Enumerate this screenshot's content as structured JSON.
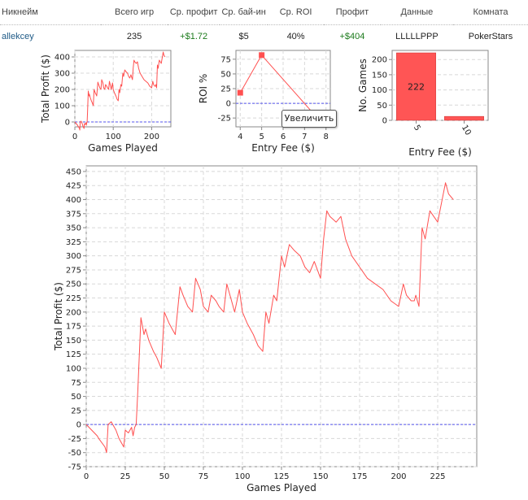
{
  "table": {
    "headers": {
      "nickname": "Никнейм",
      "games": "Всего игр",
      "avg_profit": "Ср. профит",
      "avg_buyin": "Ср. бай-ин",
      "avg_roi": "Ср. ROI",
      "profit": "Профит",
      "data": "Данные",
      "room": "Комната"
    },
    "row": {
      "nickname": "allekcey",
      "games": "235",
      "avg_profit": "+$1.72",
      "avg_buyin": "$5",
      "avg_roi": "40%",
      "profit": "+$404",
      "data": "LLLLLPPP",
      "room": "PokerStars"
    }
  },
  "zoom_tooltip": "Увеличить",
  "chart_data": [
    {
      "type": "line",
      "id": "mini-profit",
      "xlabel": "Games Played",
      "ylabel": "Total Profit ($)",
      "xlim": [
        0,
        250
      ],
      "ylim": [
        -30,
        440
      ],
      "xticks": [
        0,
        100,
        200
      ],
      "yticks": [
        0,
        100,
        200,
        300,
        400
      ],
      "baseline": 0,
      "grid": true,
      "x": [
        0,
        7,
        8,
        12,
        13,
        14,
        16,
        19,
        21,
        24,
        25,
        27,
        29,
        30,
        31,
        32,
        33,
        35,
        37,
        38,
        40,
        43,
        45,
        48,
        50,
        53,
        55,
        57,
        60,
        62,
        65,
        68,
        70,
        73,
        75,
        78,
        80,
        83,
        85,
        88,
        90,
        93,
        95,
        98,
        100,
        103,
        107,
        110,
        113,
        115,
        117,
        120,
        122,
        125,
        127,
        130,
        133,
        137,
        140,
        143,
        146,
        150,
        152,
        154,
        156,
        158,
        160,
        163,
        166,
        170,
        175,
        180,
        185,
        190,
        195,
        200,
        203,
        205,
        208,
        210,
        211,
        212,
        213,
        215,
        217,
        220,
        225,
        230,
        232,
        235
      ],
      "y": [
        0,
        -20,
        -25,
        -40,
        -50,
        0,
        5,
        -10,
        -25,
        -40,
        -10,
        -15,
        -5,
        -20,
        -5,
        0,
        60,
        190,
        160,
        170,
        150,
        130,
        120,
        100,
        200,
        180,
        170,
        160,
        245,
        230,
        210,
        200,
        260,
        240,
        210,
        200,
        230,
        220,
        210,
        200,
        250,
        220,
        200,
        240,
        200,
        180,
        160,
        140,
        130,
        200,
        180,
        230,
        220,
        300,
        280,
        320,
        310,
        300,
        280,
        270,
        290,
        260,
        330,
        380,
        370,
        365,
        360,
        370,
        330,
        300,
        280,
        260,
        250,
        240,
        220,
        210,
        250,
        230,
        220,
        220,
        230,
        220,
        210,
        350,
        330,
        380,
        360,
        430,
        410,
        400
      ]
    },
    {
      "type": "line",
      "id": "roi-by-fee",
      "xlabel": "Entry Fee ($)",
      "ylabel": "ROI %",
      "xlim": [
        3.8,
        8.2
      ],
      "ylim": [
        -40,
        90
      ],
      "xticks": [
        4,
        5,
        6,
        7,
        8
      ],
      "yticks": [
        -25,
        0,
        25,
        50,
        75
      ],
      "baseline": 0,
      "grid": true,
      "x": [
        4,
        5,
        7.6
      ],
      "y": [
        18,
        82,
        -25
      ],
      "markers": [
        true,
        true,
        false
      ]
    },
    {
      "type": "bar",
      "id": "games-by-fee",
      "xlabel": "Entry Fee ($)",
      "ylabel": "No. Games",
      "categories": [
        "5",
        "10"
      ],
      "values": [
        222,
        13
      ],
      "data_labels": [
        "222",
        ""
      ],
      "ylim": [
        0,
        230
      ],
      "yticks": [
        0,
        50,
        100,
        150,
        200
      ],
      "grid": true,
      "bar_color": "#ff5555"
    },
    {
      "type": "line",
      "id": "main-profit",
      "xlabel": "Games Played",
      "ylabel": "Total Profit ($)",
      "xlim": [
        0,
        250
      ],
      "ylim": [
        -75,
        460
      ],
      "xticks": [
        0,
        25,
        50,
        75,
        100,
        125,
        150,
        175,
        200,
        225
      ],
      "yticks": [
        -75,
        -50,
        -25,
        0,
        25,
        50,
        75,
        100,
        125,
        150,
        175,
        200,
        225,
        250,
        275,
        300,
        325,
        350,
        375,
        400,
        425,
        450
      ],
      "baseline": 0,
      "grid": true,
      "x": [
        0,
        7,
        8,
        12,
        13,
        14,
        16,
        19,
        21,
        24,
        25,
        27,
        29,
        30,
        31,
        32,
        33,
        35,
        37,
        38,
        40,
        43,
        45,
        48,
        50,
        53,
        55,
        57,
        60,
        62,
        65,
        68,
        70,
        73,
        75,
        78,
        80,
        83,
        85,
        88,
        90,
        93,
        95,
        98,
        100,
        103,
        107,
        110,
        113,
        115,
        117,
        120,
        122,
        125,
        127,
        130,
        133,
        137,
        140,
        143,
        146,
        150,
        152,
        154,
        156,
        158,
        160,
        163,
        166,
        170,
        175,
        180,
        185,
        190,
        195,
        200,
        203,
        205,
        208,
        210,
        211,
        212,
        213,
        215,
        217,
        220,
        225,
        230,
        232,
        235
      ],
      "y": [
        0,
        -20,
        -25,
        -40,
        -50,
        0,
        5,
        -10,
        -25,
        -40,
        -10,
        -15,
        -5,
        -20,
        -5,
        0,
        60,
        190,
        160,
        170,
        150,
        130,
        120,
        100,
        200,
        180,
        170,
        160,
        245,
        230,
        210,
        200,
        260,
        240,
        210,
        200,
        230,
        220,
        210,
        200,
        250,
        220,
        200,
        240,
        200,
        180,
        160,
        140,
        130,
        200,
        180,
        230,
        220,
        300,
        280,
        320,
        310,
        300,
        280,
        270,
        290,
        260,
        330,
        380,
        370,
        365,
        360,
        370,
        330,
        300,
        280,
        260,
        250,
        240,
        220,
        210,
        250,
        230,
        220,
        220,
        230,
        220,
        210,
        350,
        330,
        380,
        360,
        430,
        410,
        400
      ]
    }
  ],
  "colors": {
    "line": "#ff5050",
    "baseline": "#5555ee",
    "grid": "#d8d8d8",
    "axis": "#888888",
    "nickname_link": "#1e5a86",
    "positive": "#1b7a1b"
  }
}
